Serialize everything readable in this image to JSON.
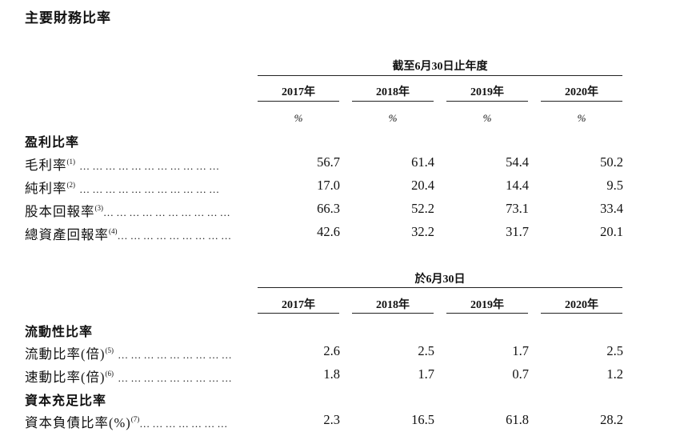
{
  "title": "主要財務比率",
  "table1": {
    "period_header": "截至6月30日止年度",
    "years": [
      "2017年",
      "2018年",
      "2019年",
      "2020年"
    ],
    "units": [
      "%",
      "%",
      "%",
      "%"
    ],
    "section_title": "盈利比率",
    "rows": [
      {
        "label": "毛利率",
        "note": "(1)",
        "dots": "……………………………",
        "values": [
          "56.7",
          "61.4",
          "54.4",
          "50.2"
        ]
      },
      {
        "label": "純利率",
        "note": "(2)",
        "dots": "……………………………",
        "values": [
          "17.0",
          "20.4",
          "14.4",
          "9.5"
        ]
      },
      {
        "label": "股本回報率",
        "note": "(3)",
        "dots": "…………………………",
        "values": [
          "66.3",
          "52.2",
          "73.1",
          "33.4"
        ]
      },
      {
        "label": "總資產回報率",
        "note": "(4)",
        "dots": "………………………",
        "values": [
          "42.6",
          "32.2",
          "31.7",
          "20.1"
        ]
      }
    ]
  },
  "table2": {
    "period_header": "於6月30日",
    "years": [
      "2017年",
      "2018年",
      "2019年",
      "2020年"
    ],
    "section_title": "流動性比率",
    "rows": [
      {
        "label": "流動比率(倍)",
        "note": "(5)",
        "dots": "………………………",
        "values": [
          "2.6",
          "2.5",
          "1.7",
          "2.5"
        ]
      },
      {
        "label": "速動比率(倍)",
        "note": "(6)",
        "dots": "………………………",
        "values": [
          "1.8",
          "1.7",
          "0.7",
          "1.2"
        ]
      }
    ],
    "section_title_2": "資本充足比率",
    "rows_2": [
      {
        "label": "資本負債比率(%)",
        "note": "(7)",
        "dots": "…………………",
        "values": [
          "2.3",
          "16.5",
          "61.8",
          "28.2"
        ]
      }
    ]
  }
}
